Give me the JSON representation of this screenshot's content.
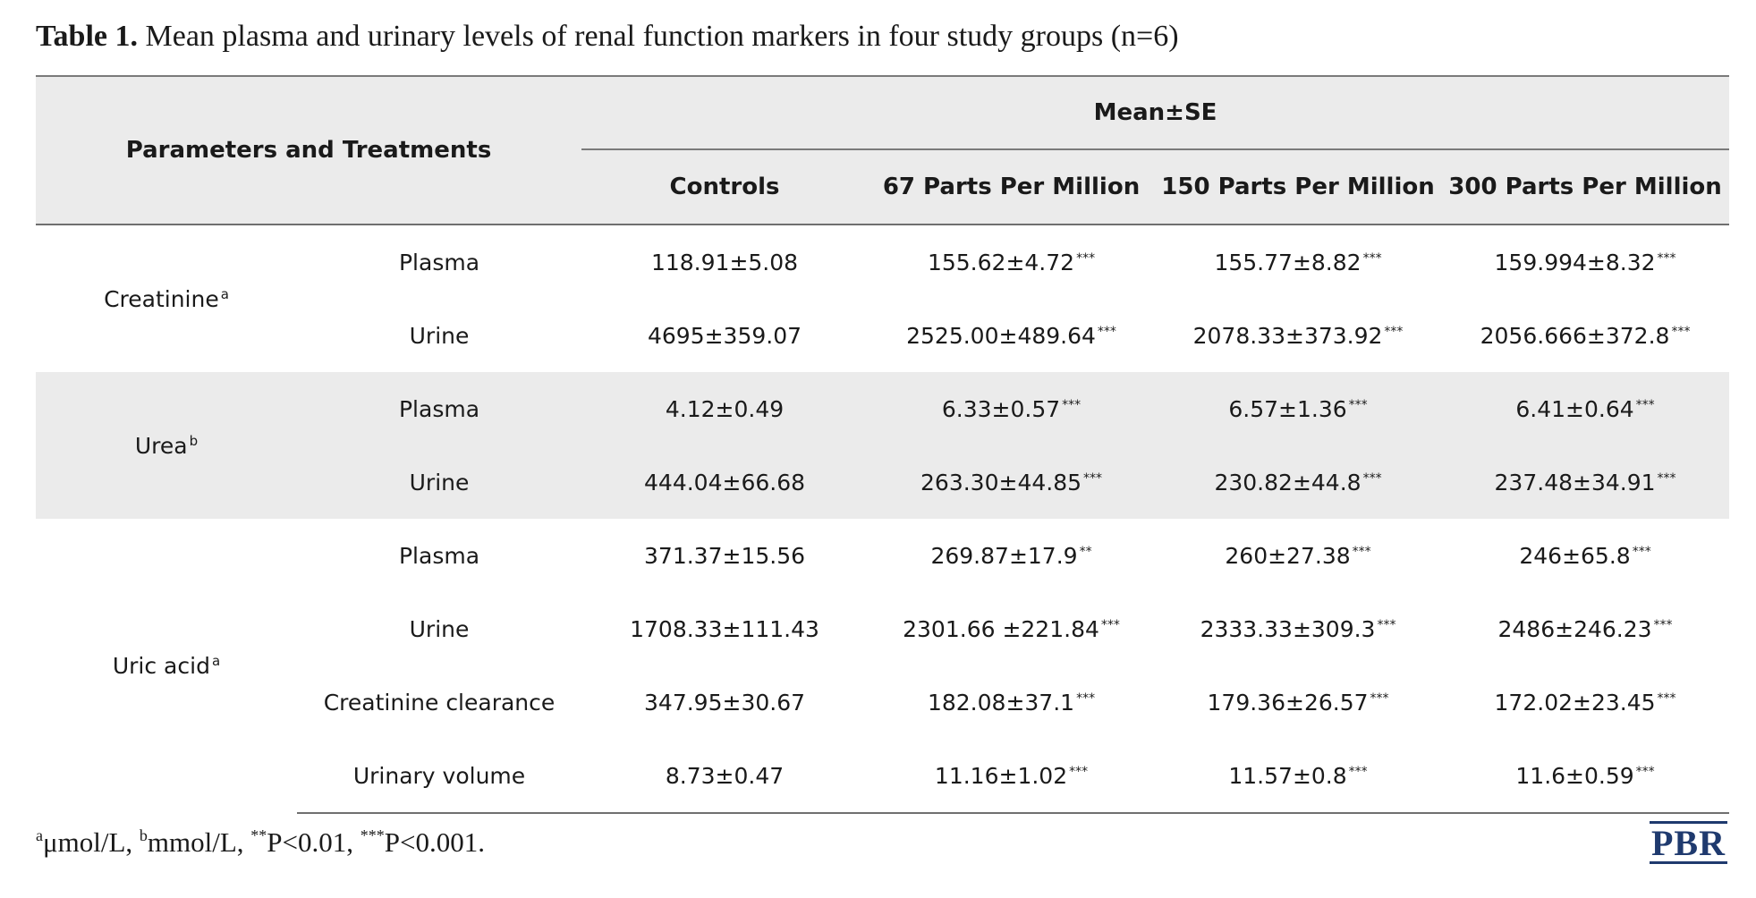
{
  "caption": {
    "label": "Table 1.",
    "text": "Mean plasma and urinary levels of renal function markers in four study groups (n=6)"
  },
  "table": {
    "header": {
      "param_col": "Parameters and Treatments",
      "group_header": "Mean±SE",
      "columns": [
        "Controls",
        "67 Parts Per Million",
        "150 Parts Per Million",
        "300 Parts Per Million"
      ]
    },
    "groups": [
      {
        "name": "Creatinine",
        "unit_marker": "a",
        "rows": [
          {
            "label": "Plasma",
            "values": [
              "118.91±5.08",
              "155.62±4.72",
              "155.77±8.82",
              "159.994±8.32"
            ],
            "sig": [
              "",
              "***",
              "***",
              "***"
            ]
          },
          {
            "label": "Urine",
            "values": [
              "4695±359.07",
              "2525.00±489.64",
              "2078.33±373.92",
              "2056.666±372.8"
            ],
            "sig": [
              "",
              "***",
              "***",
              "***"
            ]
          }
        ]
      },
      {
        "name": "Urea",
        "unit_marker": "b",
        "rows": [
          {
            "label": "Plasma",
            "values": [
              "4.12±0.49",
              "6.33±0.57",
              "6.57±1.36",
              "6.41±0.64"
            ],
            "sig": [
              "",
              "***",
              "***",
              "***"
            ]
          },
          {
            "label": "Urine",
            "values": [
              "444.04±66.68",
              "263.30±44.85",
              "230.82±44.8",
              "237.48±34.91"
            ],
            "sig": [
              "",
              "***",
              "***",
              "***"
            ]
          }
        ]
      },
      {
        "name": "Uric acid",
        "unit_marker": "a",
        "rows": [
          {
            "label": "Plasma",
            "values": [
              "371.37±15.56",
              "269.87±17.9",
              "260±27.38",
              "246±65.8"
            ],
            "sig": [
              "",
              "**",
              "***",
              "***"
            ]
          },
          {
            "label": "Urine",
            "values": [
              "1708.33±111.43",
              "2301.66 ±221.84",
              "2333.33±309.3",
              "2486±246.23"
            ],
            "sig": [
              "",
              "***",
              "***",
              "***"
            ]
          },
          {
            "label": "Creatinine clearance",
            "values": [
              "347.95±30.67",
              "182.08±37.1",
              "179.36±26.57",
              "172.02±23.45"
            ],
            "sig": [
              "",
              "***",
              "***",
              "***"
            ]
          },
          {
            "label": "Urinary volume",
            "values": [
              "8.73±0.47",
              "11.16±1.02",
              "11.57±0.8",
              "11.6±0.59"
            ],
            "sig": [
              "",
              "***",
              "***",
              "***"
            ]
          }
        ]
      }
    ]
  },
  "footnote": {
    "a_marker": "a",
    "a_text": "μmol/L, ",
    "b_marker": "b",
    "b_text": "mmol/L, ",
    "p1_marker": "**",
    "p1_text": "P<0.01, ",
    "p2_marker": "***",
    "p2_text": "P<0.001."
  },
  "logo": {
    "text": "PBR"
  }
}
